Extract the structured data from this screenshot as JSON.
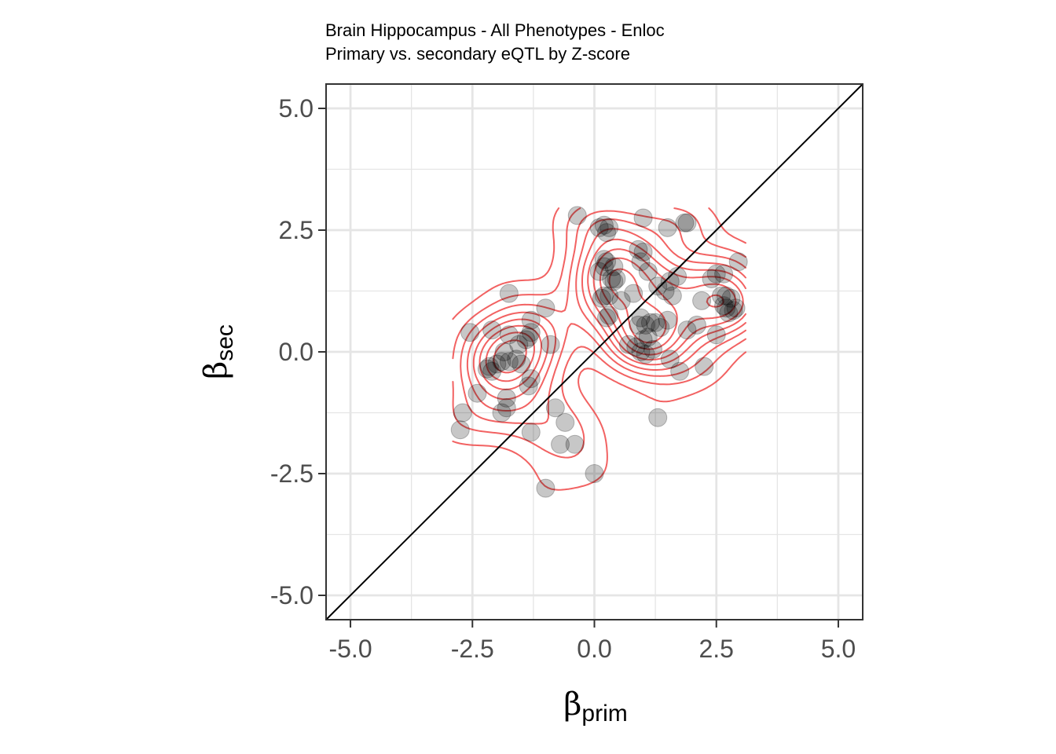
{
  "chart_data": {
    "type": "scatter",
    "title": "Brain Hippocampus - All Phenotypes - Enloc",
    "subtitle": "Primary vs. secondary eQTL by Z-score",
    "xlabel": {
      "symbol": "β",
      "subscript": "prim"
    },
    "ylabel": {
      "symbol": "β",
      "subscript": "sec"
    },
    "xlim": [
      -5.5,
      5.5
    ],
    "ylim": [
      -5.5,
      5.5
    ],
    "xticks": [
      -5.0,
      -2.5,
      0.0,
      2.5,
      5.0
    ],
    "yticks": [
      -5.0,
      -2.5,
      0.0,
      2.5,
      5.0
    ],
    "xtick_labels": [
      "-5.0",
      "-2.5",
      "0.0",
      "2.5",
      "5.0"
    ],
    "ytick_labels": [
      "-5.0",
      "-2.5",
      "0.0",
      "2.5",
      "5.0"
    ],
    "grid": true,
    "reference_line": "y = x",
    "colors": {
      "points": "#000000",
      "contour": "#ef3b3b",
      "grid": "#e5e5e5",
      "reference": "#000000"
    },
    "points": [
      [
        -0.35,
        2.8
      ],
      [
        0.1,
        2.55
      ],
      [
        0.2,
        2.6
      ],
      [
        0.3,
        2.55
      ],
      [
        0.25,
        2.45
      ],
      [
        1.0,
        2.75
      ],
      [
        1.5,
        2.55
      ],
      [
        1.85,
        2.65
      ],
      [
        1.9,
        2.65
      ],
      [
        0.9,
        2.1
      ],
      [
        1.0,
        2.05
      ],
      [
        0.95,
        1.85
      ],
      [
        0.2,
        1.9
      ],
      [
        0.25,
        1.85
      ],
      [
        0.2,
        1.75
      ],
      [
        0.1,
        1.65
      ],
      [
        0.4,
        1.75
      ],
      [
        0.35,
        1.5
      ],
      [
        0.45,
        1.5
      ],
      [
        0.4,
        1.45
      ],
      [
        0.2,
        1.15
      ],
      [
        0.3,
        1.15
      ],
      [
        0.15,
        1.1
      ],
      [
        0.55,
        1.05
      ],
      [
        0.8,
        1.2
      ],
      [
        1.1,
        1.65
      ],
      [
        1.55,
        1.45
      ],
      [
        1.7,
        1.55
      ],
      [
        1.3,
        1.35
      ],
      [
        1.45,
        1.25
      ],
      [
        1.6,
        1.15
      ],
      [
        2.5,
        1.6
      ],
      [
        2.65,
        1.6
      ],
      [
        2.4,
        1.5
      ],
      [
        2.95,
        1.85
      ],
      [
        2.2,
        1.05
      ],
      [
        2.6,
        1.15
      ],
      [
        2.7,
        1.15
      ],
      [
        2.8,
        1.1
      ],
      [
        2.65,
        0.95
      ],
      [
        2.7,
        0.9
      ],
      [
        2.75,
        0.8
      ],
      [
        2.85,
        0.85
      ],
      [
        2.9,
        0.9
      ],
      [
        0.3,
        0.75
      ],
      [
        0.25,
        0.7
      ],
      [
        0.95,
        0.7
      ],
      [
        1.05,
        0.55
      ],
      [
        0.9,
        0.55
      ],
      [
        1.15,
        0.6
      ],
      [
        1.35,
        0.5
      ],
      [
        1.5,
        0.65
      ],
      [
        1.25,
        0.6
      ],
      [
        2.1,
        0.55
      ],
      [
        1.9,
        0.45
      ],
      [
        2.5,
        0.35
      ],
      [
        0.7,
        0.15
      ],
      [
        0.85,
        0.1
      ],
      [
        1.0,
        0.25
      ],
      [
        1.1,
        0.3
      ],
      [
        0.95,
        0.0
      ],
      [
        1.05,
        -0.05
      ],
      [
        1.2,
        0.05
      ],
      [
        1.55,
        -0.15
      ],
      [
        1.75,
        -0.4
      ],
      [
        2.25,
        -0.3
      ],
      [
        1.3,
        -1.35
      ],
      [
        -1.75,
        1.2
      ],
      [
        -1.0,
        0.9
      ],
      [
        -1.3,
        0.65
      ],
      [
        -2.55,
        0.4
      ],
      [
        -2.1,
        0.45
      ],
      [
        -1.75,
        0.35
      ],
      [
        -1.3,
        0.4
      ],
      [
        -1.35,
        0.3
      ],
      [
        -1.4,
        0.25
      ],
      [
        -1.55,
        0.15
      ],
      [
        -0.9,
        0.15
      ],
      [
        -1.85,
        0.0
      ],
      [
        -1.9,
        -0.2
      ],
      [
        -1.75,
        -0.2
      ],
      [
        -1.6,
        -0.15
      ],
      [
        -1.5,
        -0.25
      ],
      [
        -2.0,
        -0.25
      ],
      [
        -2.15,
        -0.3
      ],
      [
        -2.2,
        -0.35
      ],
      [
        -2.1,
        -0.4
      ],
      [
        -1.3,
        -0.55
      ],
      [
        -1.35,
        -0.7
      ],
      [
        -2.4,
        -0.85
      ],
      [
        -1.8,
        -0.95
      ],
      [
        -1.8,
        -1.15
      ],
      [
        -1.9,
        -1.25
      ],
      [
        -0.8,
        -1.15
      ],
      [
        -1.3,
        -1.65
      ],
      [
        -2.7,
        -1.25
      ],
      [
        -2.75,
        -1.6
      ],
      [
        -0.6,
        -1.45
      ],
      [
        -0.7,
        -1.9
      ],
      [
        -0.4,
        -1.9
      ],
      [
        0.0,
        -2.5
      ],
      [
        -1.0,
        -2.8
      ]
    ]
  }
}
